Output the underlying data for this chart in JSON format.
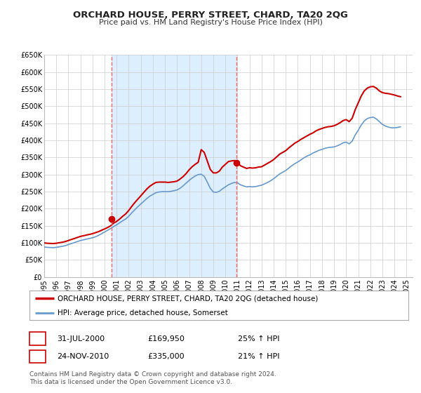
{
  "title": "ORCHARD HOUSE, PERRY STREET, CHARD, TA20 2QG",
  "subtitle": "Price paid vs. HM Land Registry's House Price Index (HPI)",
  "background_color": "#ffffff",
  "plot_bg_color": "#ffffff",
  "grid_color": "#cccccc",
  "shaded_region_color": "#ddeeff",
  "ylim": [
    0,
    650000
  ],
  "yticks": [
    0,
    50000,
    100000,
    150000,
    200000,
    250000,
    300000,
    350000,
    400000,
    450000,
    500000,
    550000,
    600000,
    650000
  ],
  "ytick_labels": [
    "£0",
    "£50K",
    "£100K",
    "£150K",
    "£200K",
    "£250K",
    "£300K",
    "£350K",
    "£400K",
    "£450K",
    "£500K",
    "£550K",
    "£600K",
    "£650K"
  ],
  "xlim_start": 1995.0,
  "xlim_end": 2025.5,
  "xtick_years": [
    1995,
    1996,
    1997,
    1998,
    1999,
    2000,
    2001,
    2002,
    2003,
    2004,
    2005,
    2006,
    2007,
    2008,
    2009,
    2010,
    2011,
    2012,
    2013,
    2014,
    2015,
    2016,
    2017,
    2018,
    2019,
    2020,
    2021,
    2022,
    2023,
    2024,
    2025
  ],
  "red_line_color": "#cc0000",
  "blue_line_color": "#6699cc",
  "marker_color": "#cc0000",
  "sale1_x": 2000.58,
  "sale1_y": 169950,
  "sale2_x": 2010.9,
  "sale2_y": 335000,
  "vline1_x": 2000.58,
  "vline2_x": 2010.9,
  "vline_color": "#ff6666",
  "legend_line1": "ORCHARD HOUSE, PERRY STREET, CHARD, TA20 2QG (detached house)",
  "legend_line2": "HPI: Average price, detached house, Somerset",
  "table_row1_num": "1",
  "table_row1_date": "31-JUL-2000",
  "table_row1_price": "£169,950",
  "table_row1_hpi": "25% ↑ HPI",
  "table_row2_num": "2",
  "table_row2_date": "24-NOV-2010",
  "table_row2_price": "£335,000",
  "table_row2_hpi": "21% ↑ HPI",
  "footer_text": "Contains HM Land Registry data © Crown copyright and database right 2024.\nThis data is licensed under the Open Government Licence v3.0.",
  "hpi_red": [
    [
      1995.0,
      100000
    ],
    [
      1995.25,
      99000
    ],
    [
      1995.5,
      98500
    ],
    [
      1995.75,
      98000
    ],
    [
      1996.0,
      99000
    ],
    [
      1996.25,
      100500
    ],
    [
      1996.5,
      102000
    ],
    [
      1996.75,
      104000
    ],
    [
      1997.0,
      107000
    ],
    [
      1997.25,
      110000
    ],
    [
      1997.5,
      113000
    ],
    [
      1997.75,
      116000
    ],
    [
      1998.0,
      119000
    ],
    [
      1998.25,
      121000
    ],
    [
      1998.5,
      123000
    ],
    [
      1998.75,
      125000
    ],
    [
      1999.0,
      127000
    ],
    [
      1999.25,
      130000
    ],
    [
      1999.5,
      133000
    ],
    [
      1999.75,
      137000
    ],
    [
      2000.0,
      141000
    ],
    [
      2000.25,
      145000
    ],
    [
      2000.5,
      150000
    ],
    [
      2000.75,
      158000
    ],
    [
      2001.0,
      163000
    ],
    [
      2001.25,
      170000
    ],
    [
      2001.5,
      178000
    ],
    [
      2001.75,
      185000
    ],
    [
      2002.0,
      195000
    ],
    [
      2002.25,
      207000
    ],
    [
      2002.5,
      218000
    ],
    [
      2002.75,
      228000
    ],
    [
      2003.0,
      238000
    ],
    [
      2003.25,
      248000
    ],
    [
      2003.5,
      258000
    ],
    [
      2003.75,
      266000
    ],
    [
      2004.0,
      272000
    ],
    [
      2004.25,
      277000
    ],
    [
      2004.5,
      278000
    ],
    [
      2004.75,
      278000
    ],
    [
      2005.0,
      278000
    ],
    [
      2005.25,
      277000
    ],
    [
      2005.5,
      278000
    ],
    [
      2005.75,
      279000
    ],
    [
      2006.0,
      281000
    ],
    [
      2006.25,
      287000
    ],
    [
      2006.5,
      294000
    ],
    [
      2006.75,
      303000
    ],
    [
      2007.0,
      314000
    ],
    [
      2007.25,
      323000
    ],
    [
      2007.5,
      330000
    ],
    [
      2007.75,
      336000
    ],
    [
      2008.0,
      373000
    ],
    [
      2008.25,
      365000
    ],
    [
      2008.5,
      340000
    ],
    [
      2008.75,
      315000
    ],
    [
      2009.0,
      305000
    ],
    [
      2009.25,
      305000
    ],
    [
      2009.5,
      310000
    ],
    [
      2009.75,
      322000
    ],
    [
      2010.0,
      330000
    ],
    [
      2010.25,
      338000
    ],
    [
      2010.5,
      340000
    ],
    [
      2010.75,
      341000
    ],
    [
      2011.0,
      335000
    ],
    [
      2011.25,
      326000
    ],
    [
      2011.5,
      322000
    ],
    [
      2011.75,
      318000
    ],
    [
      2012.0,
      320000
    ],
    [
      2012.25,
      319000
    ],
    [
      2012.5,
      320000
    ],
    [
      2012.75,
      322000
    ],
    [
      2013.0,
      323000
    ],
    [
      2013.25,
      328000
    ],
    [
      2013.5,
      333000
    ],
    [
      2013.75,
      338000
    ],
    [
      2014.0,
      344000
    ],
    [
      2014.25,
      352000
    ],
    [
      2014.5,
      360000
    ],
    [
      2014.75,
      365000
    ],
    [
      2015.0,
      370000
    ],
    [
      2015.25,
      378000
    ],
    [
      2015.5,
      385000
    ],
    [
      2015.75,
      392000
    ],
    [
      2016.0,
      397000
    ],
    [
      2016.25,
      403000
    ],
    [
      2016.5,
      408000
    ],
    [
      2016.75,
      413000
    ],
    [
      2017.0,
      418000
    ],
    [
      2017.25,
      422000
    ],
    [
      2017.5,
      428000
    ],
    [
      2017.75,
      432000
    ],
    [
      2018.0,
      435000
    ],
    [
      2018.25,
      438000
    ],
    [
      2018.5,
      440000
    ],
    [
      2018.75,
      441000
    ],
    [
      2019.0,
      443000
    ],
    [
      2019.25,
      447000
    ],
    [
      2019.5,
      452000
    ],
    [
      2019.75,
      458000
    ],
    [
      2020.0,
      461000
    ],
    [
      2020.25,
      455000
    ],
    [
      2020.5,
      465000
    ],
    [
      2020.75,
      490000
    ],
    [
      2021.0,
      510000
    ],
    [
      2021.25,
      530000
    ],
    [
      2021.5,
      545000
    ],
    [
      2021.75,
      553000
    ],
    [
      2022.0,
      557000
    ],
    [
      2022.25,
      558000
    ],
    [
      2022.5,
      553000
    ],
    [
      2022.75,
      545000
    ],
    [
      2023.0,
      540000
    ],
    [
      2023.25,
      538000
    ],
    [
      2023.5,
      537000
    ],
    [
      2023.75,
      535000
    ],
    [
      2024.0,
      533000
    ],
    [
      2024.25,
      530000
    ],
    [
      2024.5,
      528000
    ]
  ],
  "hpi_blue": [
    [
      1995.0,
      88000
    ],
    [
      1995.25,
      87000
    ],
    [
      1995.5,
      86500
    ],
    [
      1995.75,
      86000
    ],
    [
      1996.0,
      87000
    ],
    [
      1996.25,
      88500
    ],
    [
      1996.5,
      90000
    ],
    [
      1996.75,
      92000
    ],
    [
      1997.0,
      95000
    ],
    [
      1997.25,
      98000
    ],
    [
      1997.5,
      101000
    ],
    [
      1997.75,
      104000
    ],
    [
      1998.0,
      107000
    ],
    [
      1998.25,
      109000
    ],
    [
      1998.5,
      111000
    ],
    [
      1998.75,
      113000
    ],
    [
      1999.0,
      115000
    ],
    [
      1999.25,
      118000
    ],
    [
      1999.5,
      122000
    ],
    [
      1999.75,
      127000
    ],
    [
      2000.0,
      132000
    ],
    [
      2000.25,
      137000
    ],
    [
      2000.5,
      142000
    ],
    [
      2000.75,
      148000
    ],
    [
      2001.0,
      153000
    ],
    [
      2001.25,
      159000
    ],
    [
      2001.5,
      165000
    ],
    [
      2001.75,
      170000
    ],
    [
      2002.0,
      178000
    ],
    [
      2002.25,
      188000
    ],
    [
      2002.5,
      197000
    ],
    [
      2002.75,
      206000
    ],
    [
      2003.0,
      214000
    ],
    [
      2003.25,
      222000
    ],
    [
      2003.5,
      230000
    ],
    [
      2003.75,
      237000
    ],
    [
      2004.0,
      242000
    ],
    [
      2004.25,
      247000
    ],
    [
      2004.5,
      249000
    ],
    [
      2004.75,
      250000
    ],
    [
      2005.0,
      250000
    ],
    [
      2005.25,
      250000
    ],
    [
      2005.5,
      251000
    ],
    [
      2005.75,
      253000
    ],
    [
      2006.0,
      255000
    ],
    [
      2006.25,
      260000
    ],
    [
      2006.5,
      267000
    ],
    [
      2006.75,
      275000
    ],
    [
      2007.0,
      283000
    ],
    [
      2007.25,
      290000
    ],
    [
      2007.5,
      296000
    ],
    [
      2007.75,
      300000
    ],
    [
      2008.0,
      301000
    ],
    [
      2008.25,
      295000
    ],
    [
      2008.5,
      278000
    ],
    [
      2008.75,
      260000
    ],
    [
      2009.0,
      249000
    ],
    [
      2009.25,
      248000
    ],
    [
      2009.5,
      251000
    ],
    [
      2009.75,
      258000
    ],
    [
      2010.0,
      264000
    ],
    [
      2010.25,
      270000
    ],
    [
      2010.5,
      274000
    ],
    [
      2010.75,
      277000
    ],
    [
      2011.0,
      276000
    ],
    [
      2011.25,
      270000
    ],
    [
      2011.5,
      267000
    ],
    [
      2011.75,
      264000
    ],
    [
      2012.0,
      265000
    ],
    [
      2012.25,
      264000
    ],
    [
      2012.5,
      265000
    ],
    [
      2012.75,
      267000
    ],
    [
      2013.0,
      269000
    ],
    [
      2013.25,
      273000
    ],
    [
      2013.5,
      277000
    ],
    [
      2013.75,
      282000
    ],
    [
      2014.0,
      288000
    ],
    [
      2014.25,
      295000
    ],
    [
      2014.5,
      302000
    ],
    [
      2014.75,
      307000
    ],
    [
      2015.0,
      312000
    ],
    [
      2015.25,
      319000
    ],
    [
      2015.5,
      326000
    ],
    [
      2015.75,
      332000
    ],
    [
      2016.0,
      337000
    ],
    [
      2016.25,
      343000
    ],
    [
      2016.5,
      349000
    ],
    [
      2016.75,
      354000
    ],
    [
      2017.0,
      358000
    ],
    [
      2017.25,
      363000
    ],
    [
      2017.5,
      367000
    ],
    [
      2017.75,
      371000
    ],
    [
      2018.0,
      374000
    ],
    [
      2018.25,
      377000
    ],
    [
      2018.5,
      379000
    ],
    [
      2018.75,
      380000
    ],
    [
      2019.0,
      381000
    ],
    [
      2019.25,
      384000
    ],
    [
      2019.5,
      388000
    ],
    [
      2019.75,
      393000
    ],
    [
      2020.0,
      395000
    ],
    [
      2020.25,
      390000
    ],
    [
      2020.5,
      398000
    ],
    [
      2020.75,
      416000
    ],
    [
      2021.0,
      430000
    ],
    [
      2021.25,
      445000
    ],
    [
      2021.5,
      457000
    ],
    [
      2021.75,
      464000
    ],
    [
      2022.0,
      467000
    ],
    [
      2022.25,
      468000
    ],
    [
      2022.5,
      463000
    ],
    [
      2022.75,
      455000
    ],
    [
      2023.0,
      447000
    ],
    [
      2023.25,
      442000
    ],
    [
      2023.5,
      439000
    ],
    [
      2023.75,
      437000
    ],
    [
      2024.0,
      437000
    ],
    [
      2024.25,
      438000
    ],
    [
      2024.5,
      440000
    ]
  ]
}
